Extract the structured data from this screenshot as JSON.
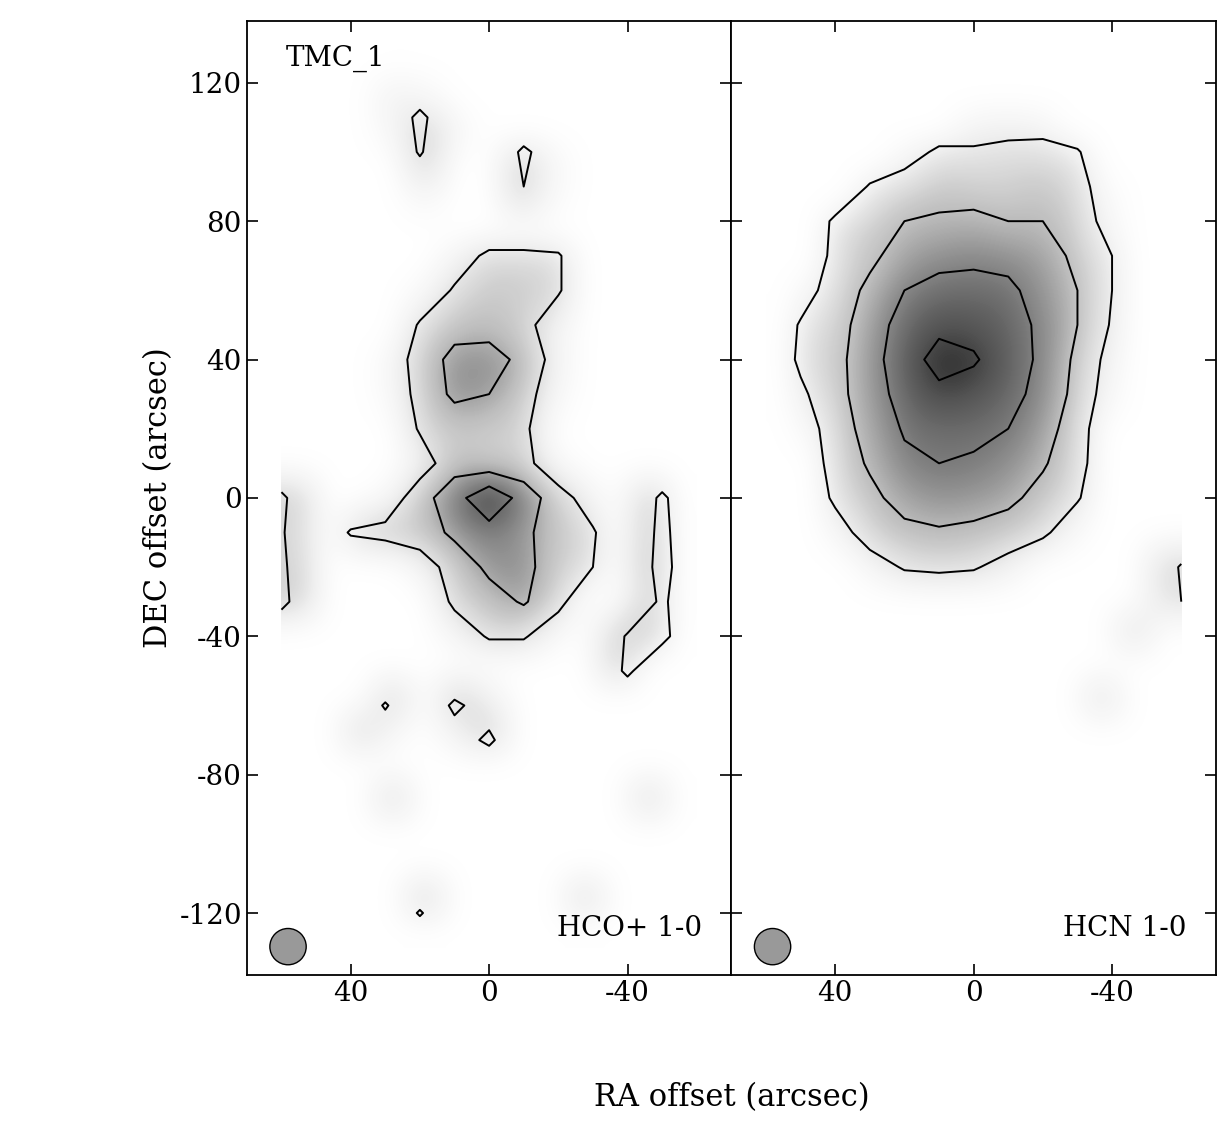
{
  "chart_data": {
    "type": "contour",
    "xlabel": "RA offset (arcsec)",
    "ylabel": "DEC offset (arcsec)",
    "xlim": [
      70,
      -70
    ],
    "ylim": [
      -138,
      138
    ],
    "xticks": [
      40,
      0,
      -40
    ],
    "yticks": [
      -120,
      -80,
      -40,
      0,
      40,
      80,
      120
    ],
    "panels": [
      {
        "title": "HCO+ 1-0",
        "label": "TMC_1",
        "ra": [
          60,
          50,
          40,
          30,
          20,
          10,
          0,
          -10,
          -20,
          -30,
          -40,
          -50,
          -60
        ],
        "dec": [
          130,
          120,
          110,
          100,
          90,
          80,
          70,
          60,
          50,
          40,
          30,
          20,
          10,
          0,
          -10,
          -20,
          -30,
          -40,
          -50,
          -60,
          -70,
          -80,
          -90,
          -100,
          -110,
          -120,
          -130
        ],
        "contour_levels": [
          1,
          2,
          3
        ],
        "intensity": [
          [
            0,
            0,
            0,
            0,
            0,
            0,
            0,
            0,
            0,
            0,
            0,
            0,
            0
          ],
          [
            0,
            0,
            0,
            0.5,
            0.3,
            0,
            0,
            0,
            0,
            0,
            0,
            0,
            0
          ],
          [
            0,
            0,
            0,
            0.3,
            1.2,
            0.3,
            0,
            0,
            0,
            0,
            0,
            0,
            0
          ],
          [
            0,
            0,
            0,
            0,
            1.1,
            0,
            0,
            1.2,
            0.3,
            0,
            0,
            0,
            0
          ],
          [
            0,
            0,
            0,
            0,
            0.3,
            0,
            0,
            1.0,
            0.2,
            0,
            0,
            0,
            0
          ],
          [
            0,
            0,
            0,
            0,
            0,
            0,
            0,
            0,
            0,
            0,
            0,
            0,
            0
          ],
          [
            0,
            0,
            0,
            0,
            0,
            0.5,
            1.2,
            1.2,
            1.1,
            0,
            0,
            0,
            0
          ],
          [
            0,
            0,
            0,
            0,
            0.3,
            1.1,
            1.4,
            1.3,
            1.1,
            0,
            0,
            0,
            0
          ],
          [
            0,
            0,
            0,
            0,
            1.1,
            1.6,
            1.7,
            1.3,
            0.4,
            0,
            0,
            0,
            0
          ],
          [
            0,
            0,
            0,
            0.3,
            1.4,
            2.3,
            2.3,
            1.8,
            0.5,
            0,
            0,
            0,
            0
          ],
          [
            0,
            0,
            0,
            0.2,
            1.3,
            2.2,
            2.0,
            1.4,
            0.3,
            0,
            0,
            0,
            0
          ],
          [
            0,
            0,
            0,
            0,
            1.1,
            1.4,
            1.3,
            1.2,
            0,
            0,
            0,
            0,
            0
          ],
          [
            0,
            0,
            0,
            0,
            0.5,
            1.6,
            1.4,
            1.3,
            0.3,
            0,
            0,
            0,
            0
          ],
          [
            1.2,
            0,
            0,
            0.3,
            1.6,
            2.6,
            3.8,
            2.6,
            1.4,
            0.5,
            0,
            1.2,
            0
          ],
          [
            1.1,
            0,
            1.1,
            1.3,
            1.5,
            2.2,
            2.6,
            2.2,
            1.5,
            1.1,
            0,
            1.3,
            0
          ],
          [
            1.2,
            0,
            0,
            0,
            0.5,
            1.4,
            2.2,
            2.3,
            1.4,
            1.0,
            0,
            1.4,
            0
          ],
          [
            1.3,
            0,
            0,
            0,
            0,
            1.2,
            1.6,
            2.1,
            1.3,
            0,
            0,
            1.2,
            0
          ],
          [
            0,
            0,
            0,
            0,
            0,
            0.4,
            1.1,
            1.1,
            0.3,
            0,
            1.1,
            1.3,
            0
          ],
          [
            0,
            0,
            0,
            0,
            0,
            0,
            0,
            0,
            0,
            0,
            1.2,
            0,
            0
          ],
          [
            0,
            0,
            0,
            1.1,
            0,
            1.2,
            0.5,
            0,
            0,
            0,
            0,
            0,
            0
          ],
          [
            0,
            0,
            1.0,
            0.3,
            0,
            0.5,
            1.2,
            0,
            0,
            0,
            0,
            0,
            0
          ],
          [
            0,
            0,
            0,
            0,
            0,
            0,
            0,
            0,
            0,
            0,
            0,
            0,
            0
          ],
          [
            0,
            0,
            0,
            1.0,
            0,
            0,
            0,
            0,
            0,
            0,
            0,
            1.0,
            0
          ],
          [
            0,
            0,
            0,
            0,
            0,
            0,
            0,
            0,
            0,
            0,
            0,
            0,
            0
          ],
          [
            0,
            0,
            0,
            0,
            0,
            0,
            0,
            0,
            0,
            0,
            0,
            0,
            0
          ],
          [
            0,
            0,
            0,
            0,
            1.1,
            0,
            0,
            0,
            0,
            1.0,
            0,
            0,
            0
          ],
          [
            0,
            0,
            0,
            0,
            0,
            0,
            0,
            0,
            0,
            0,
            0,
            0,
            0
          ]
        ]
      },
      {
        "title": "HCN 1-0",
        "ra": [
          60,
          50,
          40,
          30,
          20,
          10,
          0,
          -10,
          -20,
          -30,
          -40,
          -50,
          -60
        ],
        "dec": [
          130,
          120,
          110,
          100,
          90,
          80,
          70,
          60,
          50,
          40,
          30,
          20,
          10,
          0,
          -10,
          -20,
          -30,
          -40,
          -50,
          -60,
          -70,
          -80,
          -90,
          -100,
          -110,
          -120,
          -130
        ],
        "contour_levels": [
          1,
          2,
          3,
          4
        ],
        "intensity": [
          [
            0,
            0,
            0,
            0,
            0,
            0,
            0,
            0,
            0,
            0,
            0,
            0,
            0
          ],
          [
            0,
            0,
            0,
            0,
            0,
            0,
            0,
            0,
            0,
            0,
            0,
            0,
            0
          ],
          [
            0,
            0,
            0,
            0,
            0,
            0,
            0.5,
            0.6,
            0.5,
            0,
            0,
            0,
            0
          ],
          [
            0,
            0,
            0,
            0,
            0.5,
            1.2,
            1.1,
            1.2,
            1.3,
            1.1,
            0,
            0,
            0
          ],
          [
            0,
            0,
            0,
            1.1,
            1.5,
            1.7,
            1.6,
            1.5,
            1.7,
            1.4,
            0.3,
            0,
            0
          ],
          [
            0,
            0,
            1.2,
            1.6,
            2.0,
            2.1,
            2.2,
            2.0,
            2.0,
            1.6,
            0.5,
            0,
            0
          ],
          [
            0,
            0,
            1.3,
            1.8,
            2.4,
            2.7,
            2.8,
            2.7,
            2.4,
            1.8,
            1.0,
            0,
            0
          ],
          [
            0,
            0.5,
            1.5,
            2.2,
            3.0,
            3.3,
            3.3,
            3.2,
            2.6,
            2.0,
            1.0,
            0,
            0
          ],
          [
            0,
            1.1,
            1.6,
            2.5,
            3.4,
            3.8,
            3.7,
            3.4,
            2.8,
            2.0,
            0.9,
            0,
            0
          ],
          [
            0,
            1.2,
            1.7,
            2.6,
            3.6,
            4.3,
            4.1,
            3.5,
            2.8,
            1.8,
            0.6,
            0,
            0
          ],
          [
            0,
            0.8,
            1.7,
            2.5,
            3.4,
            3.8,
            3.6,
            3.3,
            2.7,
            1.7,
            0.4,
            0,
            0
          ],
          [
            0,
            0.3,
            1.6,
            2.3,
            3.1,
            3.2,
            3.2,
            3.0,
            2.4,
            1.5,
            0,
            0,
            0
          ],
          [
            0,
            0,
            1.5,
            2.1,
            2.8,
            3.0,
            2.9,
            2.6,
            2.1,
            1.4,
            0,
            0,
            0
          ],
          [
            0,
            0,
            1.2,
            1.8,
            2.3,
            2.5,
            2.4,
            2.2,
            1.7,
            1.1,
            0,
            0,
            0
          ],
          [
            0,
            0,
            0.5,
            1.5,
            1.8,
            1.9,
            1.8,
            1.6,
            1.2,
            0.3,
            0,
            0,
            0
          ],
          [
            0,
            0,
            0,
            0.5,
            1.1,
            1.2,
            1.1,
            0.6,
            0,
            0,
            0,
            0,
            1.1
          ],
          [
            0,
            0,
            0,
            0,
            0,
            0,
            0,
            0,
            0,
            0,
            0,
            0,
            1.0
          ],
          [
            0,
            0,
            0,
            0,
            0,
            0,
            0,
            0,
            0,
            0,
            0,
            1.0,
            0
          ],
          [
            0,
            0,
            0,
            0,
            0,
            0,
            0,
            0,
            0,
            0,
            0,
            0,
            0
          ],
          [
            0,
            0,
            0,
            0,
            0,
            0,
            0,
            0,
            0,
            0,
            1.0,
            0,
            0
          ],
          [
            0,
            0,
            0,
            0,
            0,
            0,
            0,
            0,
            0,
            0,
            0,
            0,
            0
          ],
          [
            0,
            0,
            0,
            0,
            0,
            0,
            0,
            0,
            0,
            0,
            0,
            0,
            0
          ],
          [
            0,
            0,
            0,
            0,
            0,
            0,
            0,
            0,
            0,
            0,
            0,
            0,
            0
          ],
          [
            0,
            0,
            0,
            0,
            0,
            0,
            0,
            0,
            0,
            0,
            0,
            0,
            0
          ],
          [
            0,
            0,
            0,
            0,
            0,
            0,
            0,
            0,
            0,
            0,
            0,
            0,
            0
          ],
          [
            0,
            0,
            0,
            0,
            0,
            0,
            0,
            0,
            0,
            0,
            0,
            0,
            0
          ],
          [
            0,
            0,
            0,
            0,
            0,
            0,
            0,
            0,
            0,
            0,
            0,
            0,
            0
          ]
        ]
      }
    ]
  }
}
